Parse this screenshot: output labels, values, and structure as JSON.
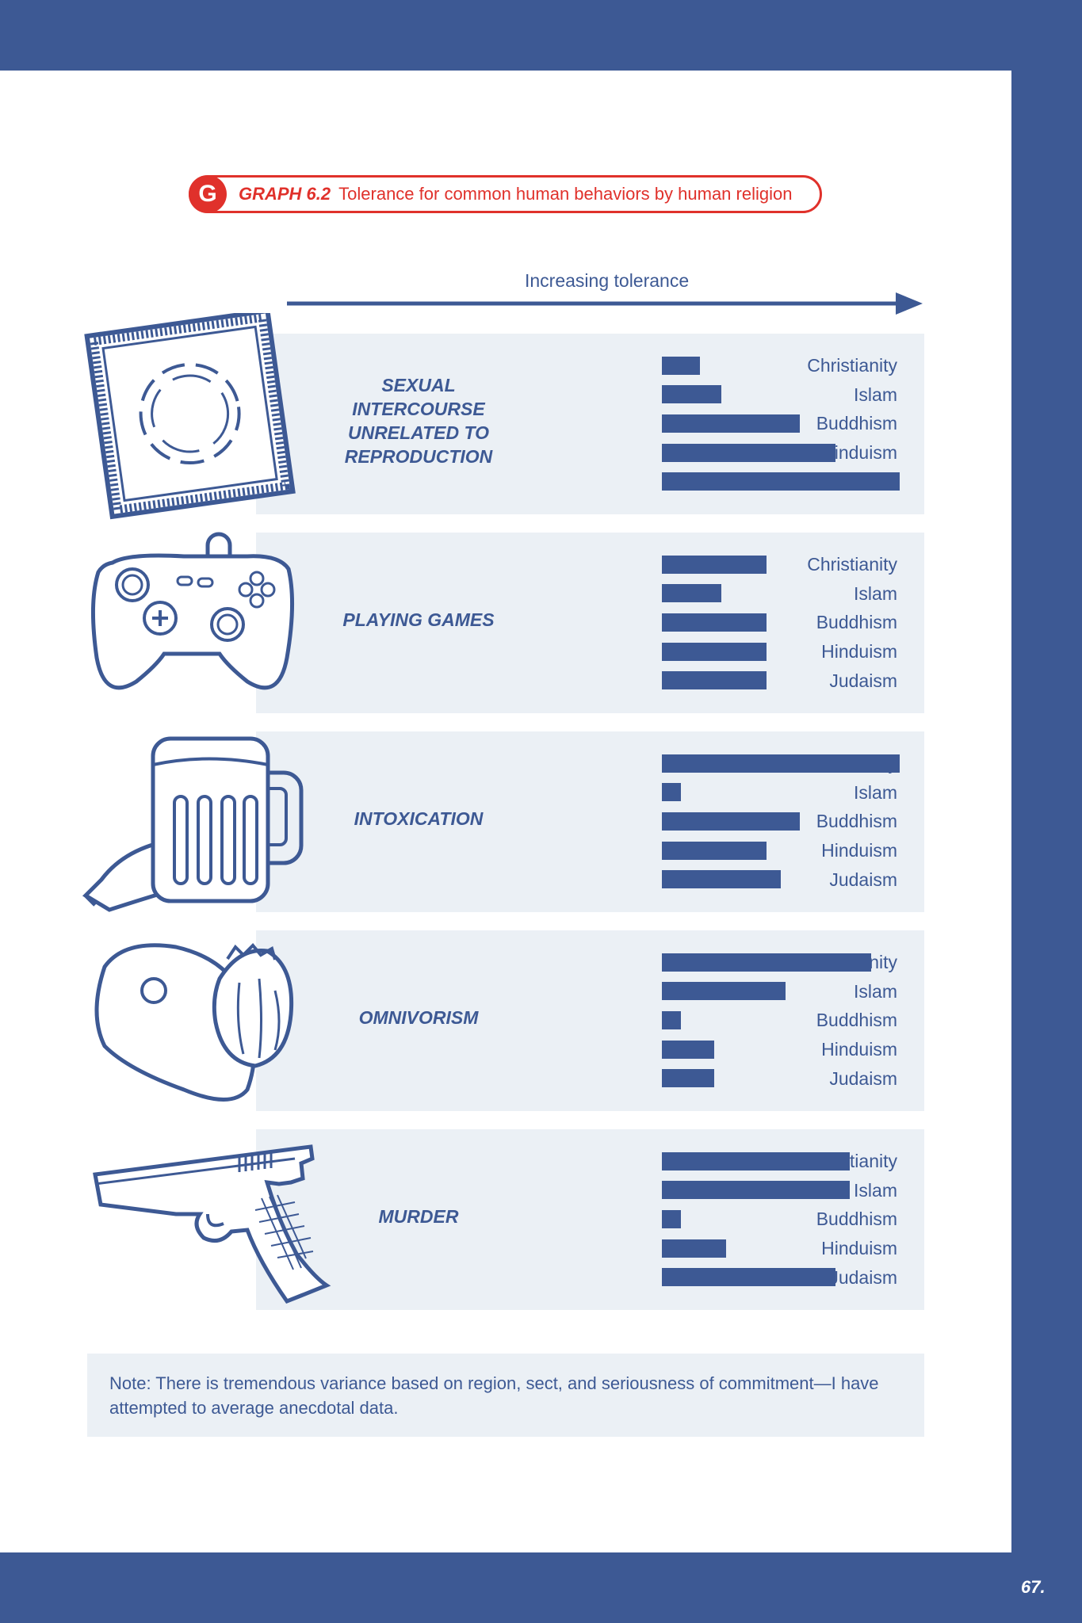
{
  "header": {
    "badge": "G",
    "graph_number": "GRAPH 6.2",
    "graph_title": "Tolerance for common human behaviors by human religion"
  },
  "axis_label": "Increasing tolerance",
  "colors": {
    "primary": "#3d5994",
    "accent": "#e0312b",
    "panel": "#ebf0f5"
  },
  "chart_data": {
    "type": "bar",
    "orientation": "horizontal",
    "title": "Tolerance for common human behaviors by human religion",
    "xlabel": "Increasing tolerance",
    "value_scale": "relative tolerance, longest bar = 1.0",
    "categories": [
      "Christianity",
      "Islam",
      "Buddhism",
      "Hinduism",
      "Judaism"
    ],
    "groups": [
      {
        "label": "SEXUAL INTERCOURSE UNRELATED TO REPRODUCTION",
        "lines": [
          "SEXUAL",
          "INTERCOURSE",
          "UNRELATED TO",
          "REPRODUCTION"
        ],
        "icon": "condom-icon",
        "values": [
          0.16,
          0.25,
          0.58,
          0.73,
          1.0
        ]
      },
      {
        "label": "PLAYING GAMES",
        "lines": [
          "PLAYING GAMES"
        ],
        "icon": "game-controller-icon",
        "values": [
          0.44,
          0.25,
          0.44,
          0.44,
          0.44
        ]
      },
      {
        "label": "INTOXICATION",
        "lines": [
          "INTOXICATION"
        ],
        "icon": "beer-mug-icon",
        "values": [
          1.0,
          0.08,
          0.58,
          0.44,
          0.5
        ]
      },
      {
        "label": "OMNIVORISM",
        "lines": [
          "OMNIVORISM"
        ],
        "icon": "meat-and-lettuce-icon",
        "values": [
          0.88,
          0.52,
          0.08,
          0.22,
          0.22
        ]
      },
      {
        "label": "MURDER",
        "lines": [
          "MURDER"
        ],
        "icon": "handgun-icon",
        "values": [
          0.79,
          0.79,
          0.08,
          0.27,
          0.73
        ]
      }
    ]
  },
  "note": "Note: There is tremendous variance based on region, sect, and seriousness of commitment—I have attempted to average anecdotal data.",
  "page_number": "67."
}
